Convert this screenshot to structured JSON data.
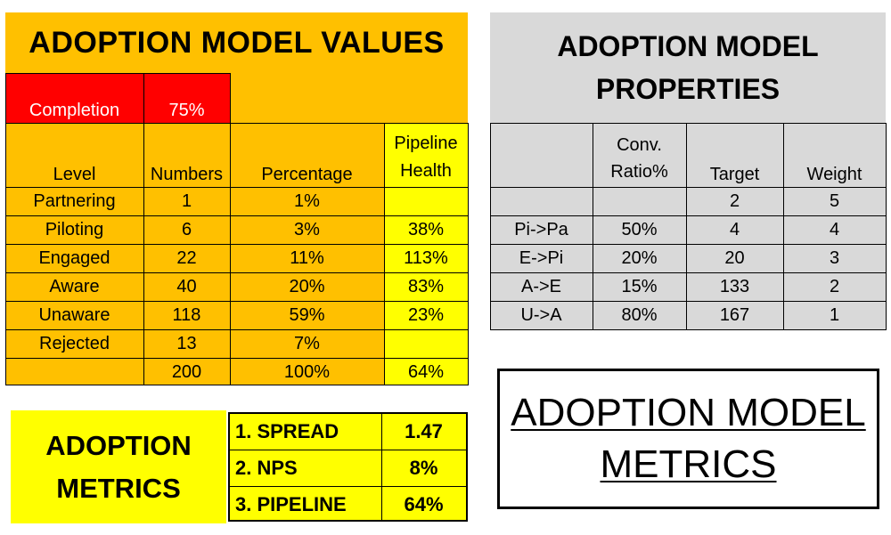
{
  "values_panel": {
    "title": "ADOPTION MODEL VALUES",
    "completion_label": "Completion",
    "completion_value": "75%",
    "headers": [
      "Level",
      "Numbers",
      "Percentage",
      "Pipeline\nHealth"
    ],
    "rows": [
      [
        "Partnering",
        "1",
        "1%",
        ""
      ],
      [
        "Piloting",
        "6",
        "3%",
        "38%"
      ],
      [
        "Engaged",
        "22",
        "11%",
        "113%"
      ],
      [
        "Aware",
        "40",
        "20%",
        "83%"
      ],
      [
        "Unaware",
        "118",
        "59%",
        "23%"
      ],
      [
        "Rejected",
        "13",
        "7%",
        ""
      ],
      [
        "",
        "200",
        "100%",
        "64%"
      ]
    ]
  },
  "properties_panel": {
    "title_line1": "ADOPTION MODEL",
    "title_line2": "PROPERTIES",
    "headers": [
      "",
      "Conv.\nRatio%",
      "Target",
      "Weight"
    ],
    "rows": [
      [
        "",
        "",
        "2",
        "5"
      ],
      [
        "Pi->Pa",
        "50%",
        "4",
        "4"
      ],
      [
        "E->Pi",
        "20%",
        "20",
        "3"
      ],
      [
        "A->E",
        "15%",
        "133",
        "2"
      ],
      [
        "U->A",
        "80%",
        "167",
        "1"
      ]
    ]
  },
  "metrics": {
    "label_line1": "ADOPTION",
    "label_line2": "METRICS",
    "rows": [
      [
        "1. SPREAD",
        "1.47"
      ],
      [
        "2. NPS",
        "8%"
      ],
      [
        "3. PIPELINE",
        "64%"
      ]
    ]
  },
  "footer_box": {
    "line1": "ADOPTION MODEL",
    "line2": "METRICS"
  },
  "colors": {
    "orange": "#ffc000",
    "yellow": "#ffff00",
    "red": "#ff0000",
    "gray": "#d9d9d9"
  }
}
